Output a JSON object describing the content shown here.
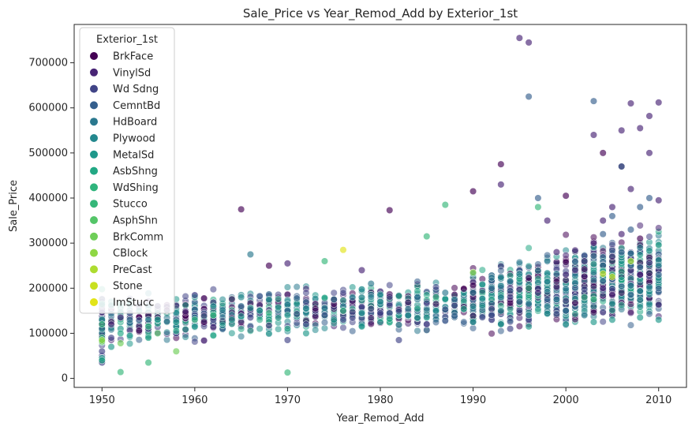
{
  "chart_data": {
    "type": "scatter",
    "title": "Sale_Price vs Year_Remod_Add by Exterior_1st",
    "xlabel": "Year_Remod_Add",
    "ylabel": "Sale_Price",
    "xlim": [
      1947,
      2013
    ],
    "ylim": [
      -20000,
      785000
    ],
    "xticks": [
      1950,
      1960,
      1970,
      1980,
      1990,
      2000,
      2010
    ],
    "yticks": [
      0,
      100000,
      200000,
      300000,
      400000,
      500000,
      600000,
      700000
    ],
    "ytick_labels": [
      "0",
      "100000",
      "200000",
      "300000",
      "400000",
      "500000",
      "600000",
      "700000"
    ],
    "grid": false,
    "legend_title": "Exterior_1st",
    "legend_position": "top-left",
    "series": [
      {
        "name": "BrkFace",
        "color": "#440154",
        "points": [
          [
            1950,
            95000
          ],
          [
            1955,
            140000
          ],
          [
            1961,
            125000
          ],
          [
            1965,
            375000
          ],
          [
            1968,
            250000
          ],
          [
            1975,
            165000
          ],
          [
            1981,
            373000
          ],
          [
            1990,
            415000
          ],
          [
            1993,
            475000
          ],
          [
            1996,
            200000
          ],
          [
            2000,
            405000
          ],
          [
            2004,
            500000
          ],
          [
            2006,
            470000
          ],
          [
            2008,
            310000
          ]
        ]
      },
      {
        "name": "VinylSd",
        "color": "#482475",
        "points": [
          [
            1950,
            120000
          ],
          [
            1952,
            135000
          ],
          [
            1956,
            160000
          ],
          [
            1970,
            255000
          ],
          [
            1978,
            240000
          ],
          [
            1993,
            430000
          ],
          [
            1995,
            755000
          ],
          [
            1996,
            745000
          ],
          [
            1998,
            350000
          ],
          [
            2000,
            230000
          ],
          [
            2002,
            260000
          ],
          [
            2003,
            540000
          ],
          [
            2004,
            350000
          ],
          [
            2005,
            380000
          ],
          [
            2006,
            550000
          ],
          [
            2007,
            610000
          ],
          [
            2008,
            555000
          ],
          [
            2009,
            582000
          ],
          [
            2010,
            612000
          ],
          [
            2009,
            500000
          ],
          [
            2003,
            300000
          ],
          [
            2005,
            270000
          ],
          [
            2007,
            420000
          ],
          [
            2006,
            320000
          ],
          [
            1999,
            280000
          ],
          [
            2001,
            240000
          ],
          [
            2004,
            200000
          ],
          [
            2008,
            230000
          ],
          [
            2002,
            180000
          ],
          [
            1997,
            190000
          ],
          [
            2010,
            395000
          ]
        ]
      },
      {
        "name": "Wd Sdng",
        "color": "#414487",
        "points": [
          [
            1950,
            60000
          ],
          [
            1950,
            130000
          ],
          [
            1951,
            90000
          ],
          [
            1953,
            145000
          ],
          [
            1955,
            110000
          ],
          [
            1958,
            100000
          ],
          [
            1960,
            140000
          ],
          [
            1962,
            130000
          ],
          [
            1966,
            135000
          ],
          [
            1970,
            85000
          ],
          [
            1972,
            120000
          ],
          [
            1974,
            140000
          ],
          [
            1976,
            130000
          ],
          [
            1980,
            145000
          ],
          [
            1982,
            85000
          ],
          [
            1985,
            120000
          ],
          [
            1990,
            125000
          ],
          [
            1992,
            140000
          ],
          [
            1994,
            110000
          ],
          [
            1996,
            130000
          ],
          [
            2000,
            150000
          ],
          [
            1950,
            40000
          ],
          [
            1950,
            35000
          ]
        ]
      },
      {
        "name": "CemntBd",
        "color": "#355f8d",
        "points": [
          [
            1996,
            625000
          ],
          [
            1997,
            400000
          ],
          [
            2003,
            615000
          ],
          [
            2004,
            320000
          ],
          [
            2005,
            360000
          ],
          [
            2006,
            470000
          ],
          [
            2007,
            330000
          ],
          [
            2008,
            380000
          ],
          [
            2007,
            250000
          ],
          [
            2006,
            280000
          ],
          [
            2005,
            220000
          ],
          [
            2009,
            400000
          ],
          [
            2010,
            230000
          ]
        ]
      },
      {
        "name": "HdBoard",
        "color": "#2a788e",
        "points": [
          [
            1950,
            100000
          ],
          [
            1955,
            130000
          ],
          [
            1960,
            135000
          ],
          [
            1966,
            275000
          ],
          [
            1970,
            150000
          ],
          [
            1975,
            175000
          ],
          [
            1977,
            180000
          ],
          [
            1980,
            165000
          ],
          [
            1984,
            180000
          ],
          [
            1988,
            175000
          ],
          [
            1990,
            190000
          ],
          [
            1993,
            180000
          ],
          [
            1995,
            170000
          ],
          [
            1996,
            165000
          ],
          [
            1998,
            160000
          ],
          [
            2000,
            150000
          ],
          [
            2002,
            140000
          ],
          [
            1992,
            200000
          ],
          [
            1987,
            190000
          ],
          [
            1979,
            210000
          ],
          [
            1994,
            215000
          ],
          [
            1999,
            175000
          ]
        ]
      },
      {
        "name": "Plywood",
        "color": "#23888e",
        "points": [
          [
            1950,
            110000
          ],
          [
            1958,
            145000
          ],
          [
            1962,
            160000
          ],
          [
            1965,
            180000
          ],
          [
            1968,
            175000
          ],
          [
            1972,
            155000
          ],
          [
            1976,
            160000
          ],
          [
            1978,
            145000
          ],
          [
            1980,
            170000
          ],
          [
            1983,
            140000
          ],
          [
            1986,
            150000
          ],
          [
            1990,
            160000
          ],
          [
            1993,
            150000
          ],
          [
            1996,
            140000
          ]
        ]
      },
      {
        "name": "MetalSd",
        "color": "#1f988b",
        "points": [
          [
            1950,
            45000
          ],
          [
            1950,
            85000
          ],
          [
            1950,
            130000
          ],
          [
            1952,
            110000
          ],
          [
            1954,
            150000
          ],
          [
            1956,
            130000
          ],
          [
            1958,
            125000
          ],
          [
            1960,
            115000
          ],
          [
            1962,
            140000
          ],
          [
            1964,
            130000
          ],
          [
            1967,
            150000
          ],
          [
            1970,
            140000
          ],
          [
            1972,
            100000
          ],
          [
            1975,
            130000
          ],
          [
            1978,
            115000
          ],
          [
            1980,
            125000
          ],
          [
            1985,
            135000
          ],
          [
            1990,
            125000
          ],
          [
            1993,
            120000
          ],
          [
            1996,
            115000
          ],
          [
            2000,
            120000
          ],
          [
            2003,
            125000
          ],
          [
            2005,
            130000
          ],
          [
            2008,
            135000
          ],
          [
            2010,
            130000
          ],
          [
            1951,
            70000
          ],
          [
            1953,
            95000
          ]
        ]
      },
      {
        "name": "AsbShng",
        "color": "#22a884",
        "points": [
          [
            1950,
            40000
          ],
          [
            1950,
            80000
          ],
          [
            1952,
            100000
          ],
          [
            1955,
            90000
          ],
          [
            1958,
            105000
          ],
          [
            1962,
            95000
          ],
          [
            1970,
            110000
          ]
        ]
      },
      {
        "name": "WdShing",
        "color": "#2fb47c",
        "points": [
          [
            1950,
            90000
          ],
          [
            1955,
            115000
          ],
          [
            1960,
            130000
          ],
          [
            1968,
            145000
          ],
          [
            1976,
            150000
          ],
          [
            1986,
            180000
          ],
          [
            1996,
            200000
          ],
          [
            2002,
            180000
          ]
        ]
      },
      {
        "name": "Stucco",
        "color": "#35b779",
        "points": [
          [
            1950,
            120000
          ],
          [
            1952,
            14000
          ],
          [
            1955,
            35000
          ],
          [
            1962,
            140000
          ],
          [
            1970,
            13000
          ],
          [
            1974,
            260000
          ],
          [
            1985,
            315000
          ],
          [
            1987,
            385000
          ],
          [
            1997,
            380000
          ],
          [
            2003,
            175000
          ],
          [
            2005,
            230000
          ]
        ]
      },
      {
        "name": "AsphShn",
        "color": "#54c568",
        "points": [
          [
            1950,
            82000
          ],
          [
            1956,
            100000
          ]
        ]
      },
      {
        "name": "BrkComm",
        "color": "#6ece58",
        "points": [
          [
            1950,
            82000
          ],
          [
            1952,
            78000
          ],
          [
            1958,
            60000
          ]
        ]
      },
      {
        "name": "CBlock",
        "color": "#8fd744",
        "points": [
          [
            1950,
            85000
          ],
          [
            1990,
            235000
          ]
        ]
      },
      {
        "name": "PreCast",
        "color": "#addc30",
        "points": [
          [
            2007,
            260000
          ]
        ]
      },
      {
        "name": "Stone",
        "color": "#c8e020",
        "points": [
          [
            2004,
            232000
          ],
          [
            2005,
            225000
          ]
        ]
      },
      {
        "name": "ImStucc",
        "color": "#e2e418",
        "points": [
          [
            1976,
            285000
          ]
        ]
      }
    ]
  }
}
